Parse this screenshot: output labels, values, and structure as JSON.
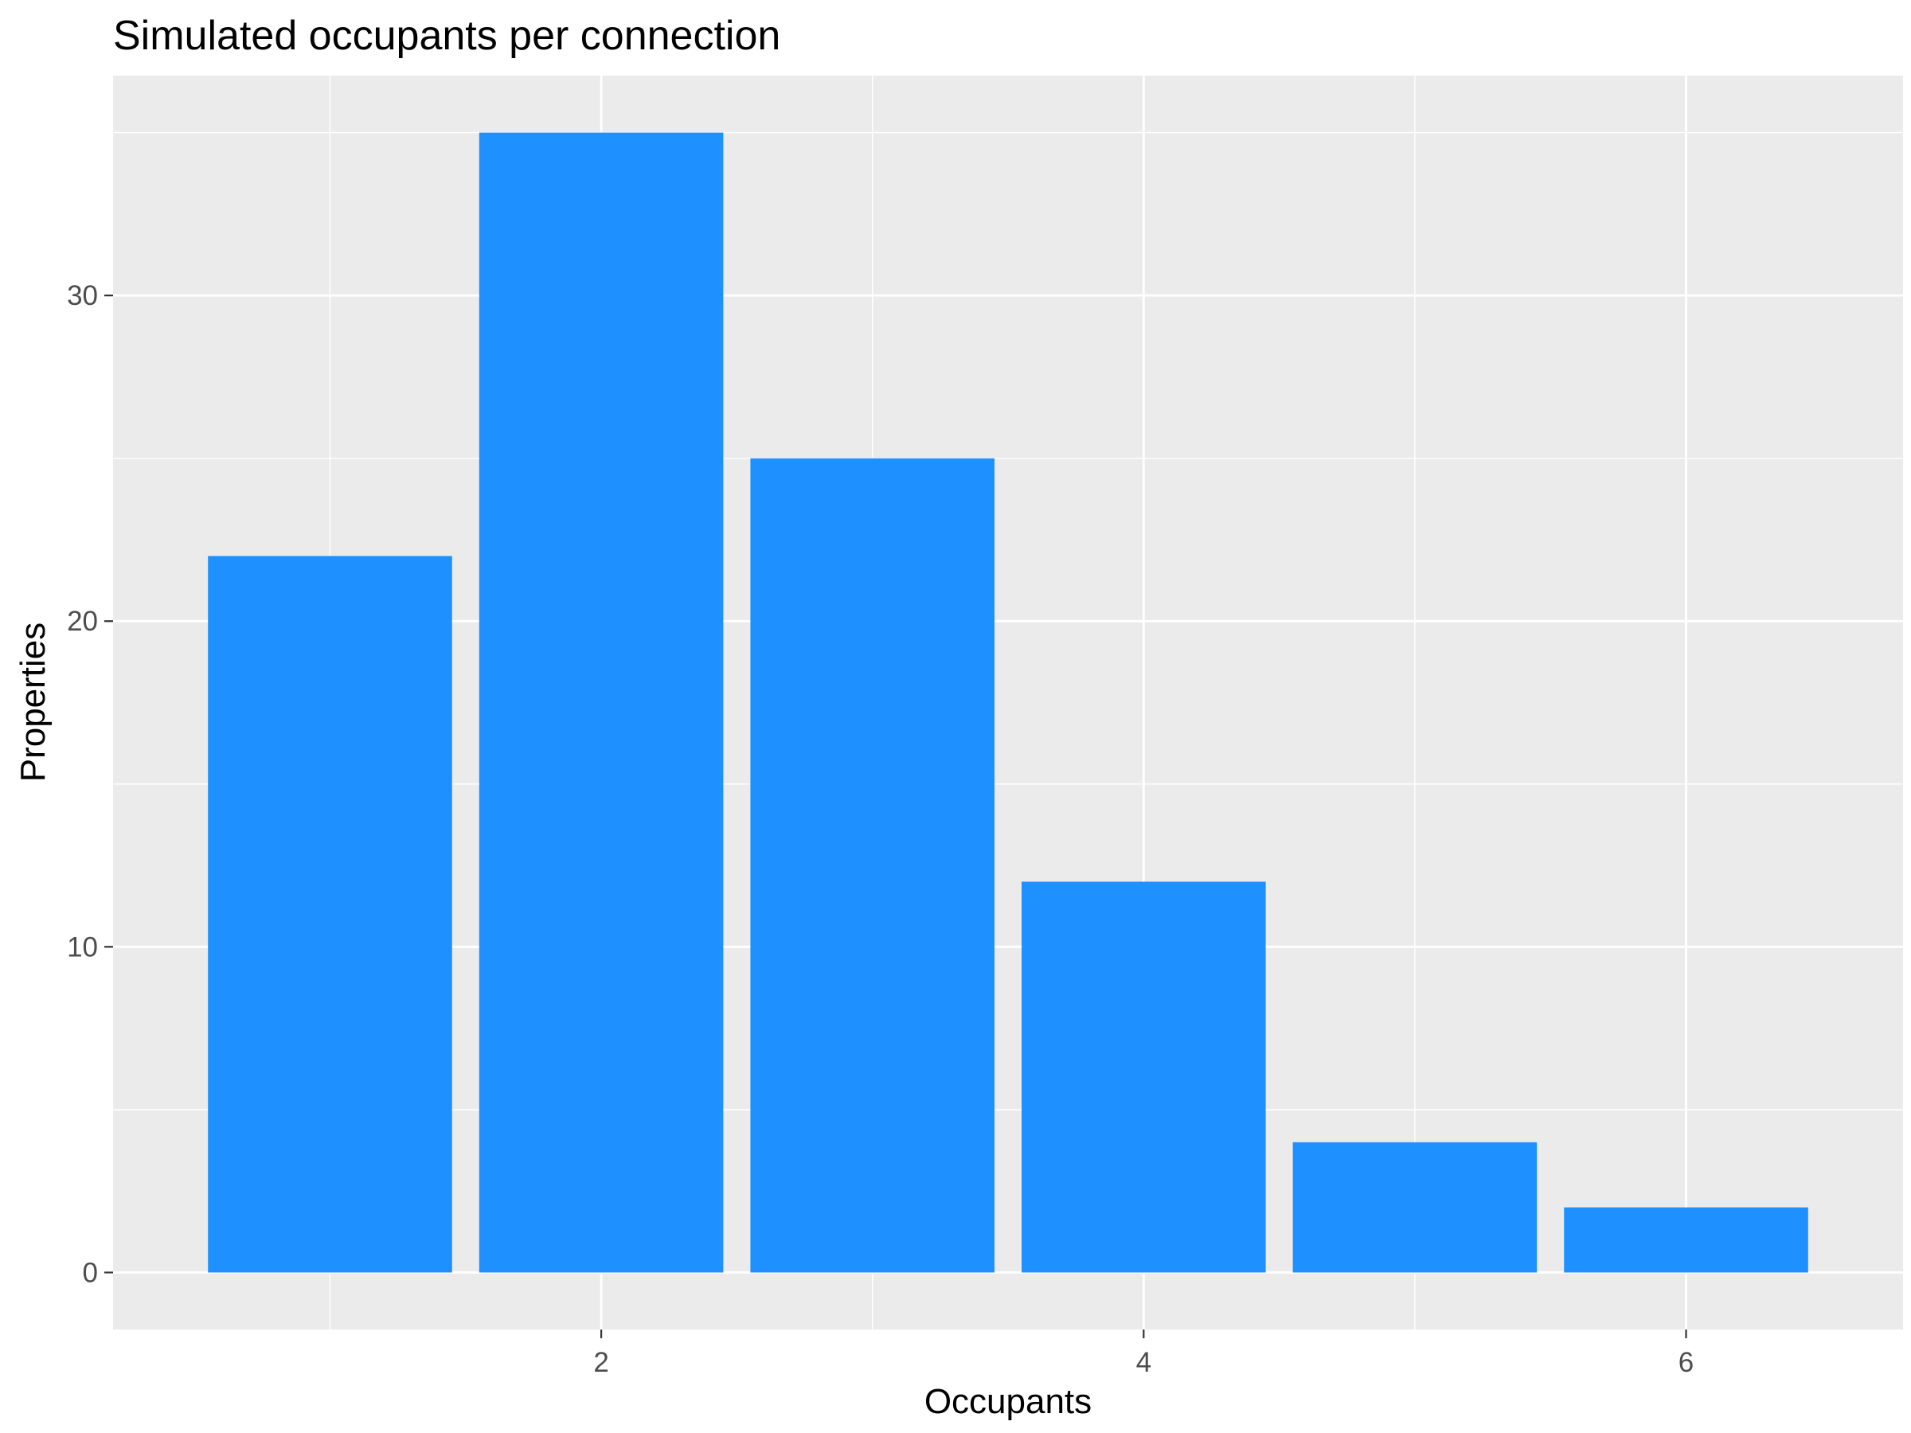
{
  "chart_data": {
    "type": "bar",
    "title": "Simulated occupants per connection",
    "xlabel": "Occupants",
    "ylabel": "Properties",
    "x": [
      1,
      2,
      3,
      4,
      5,
      6
    ],
    "values": [
      22,
      35,
      25,
      12,
      4,
      2
    ],
    "x_ticks": [
      2,
      4,
      6
    ],
    "y_ticks": [
      0,
      10,
      20,
      30
    ],
    "xlim": [
      0.5,
      6.5
    ],
    "ylim": [
      0,
      35
    ],
    "grid": true,
    "legend": "none"
  },
  "colors": {
    "bar": "#1E90FF",
    "panel_background": "#EBEBEB",
    "grid_line": "#FFFFFF",
    "tick_text": "#4D4D4D",
    "tick_mark": "#333333",
    "text": "#000000"
  }
}
